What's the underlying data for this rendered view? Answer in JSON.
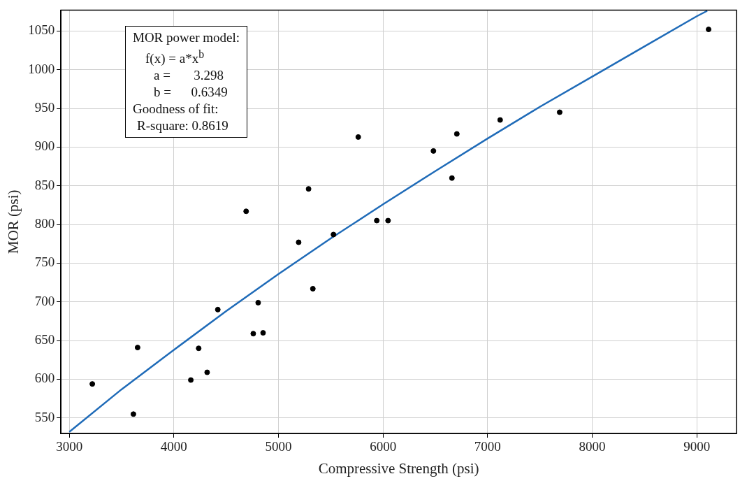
{
  "chart_data": {
    "type": "scatter",
    "xlabel": "Compressive Strength (psi)",
    "ylabel": "MOR (psi)",
    "annotations": [
      "MOR power model:",
      "f(x) = a*x$^{b}$",
      "a =       3.298",
      "b =      0.6349",
      "Goodness of fit:",
      "R-square: 0.8619"
    ],
    "series": [
      {
        "type": "scatter",
        "marker": "circle",
        "color": "#000000",
        "x": [
          3220,
          3613,
          3653,
          4162,
          4237,
          4318,
          4420,
          4691,
          4759,
          4806,
          4853,
          5193,
          5288,
          5329,
          5526,
          5763,
          5940,
          6048,
          6482,
          6659,
          6706,
          7120,
          7689,
          9113
        ],
        "values": [
          594,
          555,
          641,
          599,
          640,
          609,
          690,
          817,
          659,
          699,
          660,
          777,
          846,
          717,
          787,
          913,
          805,
          805,
          895,
          860,
          917,
          935,
          945,
          1052
        ]
      },
      {
        "type": "line",
        "marker": "none",
        "color": "#1f6bb8",
        "x": [
          3000,
          3500,
          4000,
          4500,
          5000,
          5500,
          6000,
          6500,
          7000,
          7500,
          8000,
          8500,
          9000,
          9100
        ],
        "values": [
          532,
          587,
          638,
          688,
          736,
          782,
          826,
          869,
          911,
          952,
          991,
          1030,
          1069,
          1076
        ]
      }
    ],
    "grid": true,
    "legend": false,
    "xlim": [
      2920,
      9380
    ],
    "xticks": [
      3000,
      4000,
      5000,
      6000,
      7000,
      8000,
      9000
    ],
    "ylim": [
      530,
      1077
    ],
    "yticks": [
      550,
      600,
      650,
      700,
      750,
      800,
      850,
      900,
      950,
      1000,
      1050
    ]
  }
}
